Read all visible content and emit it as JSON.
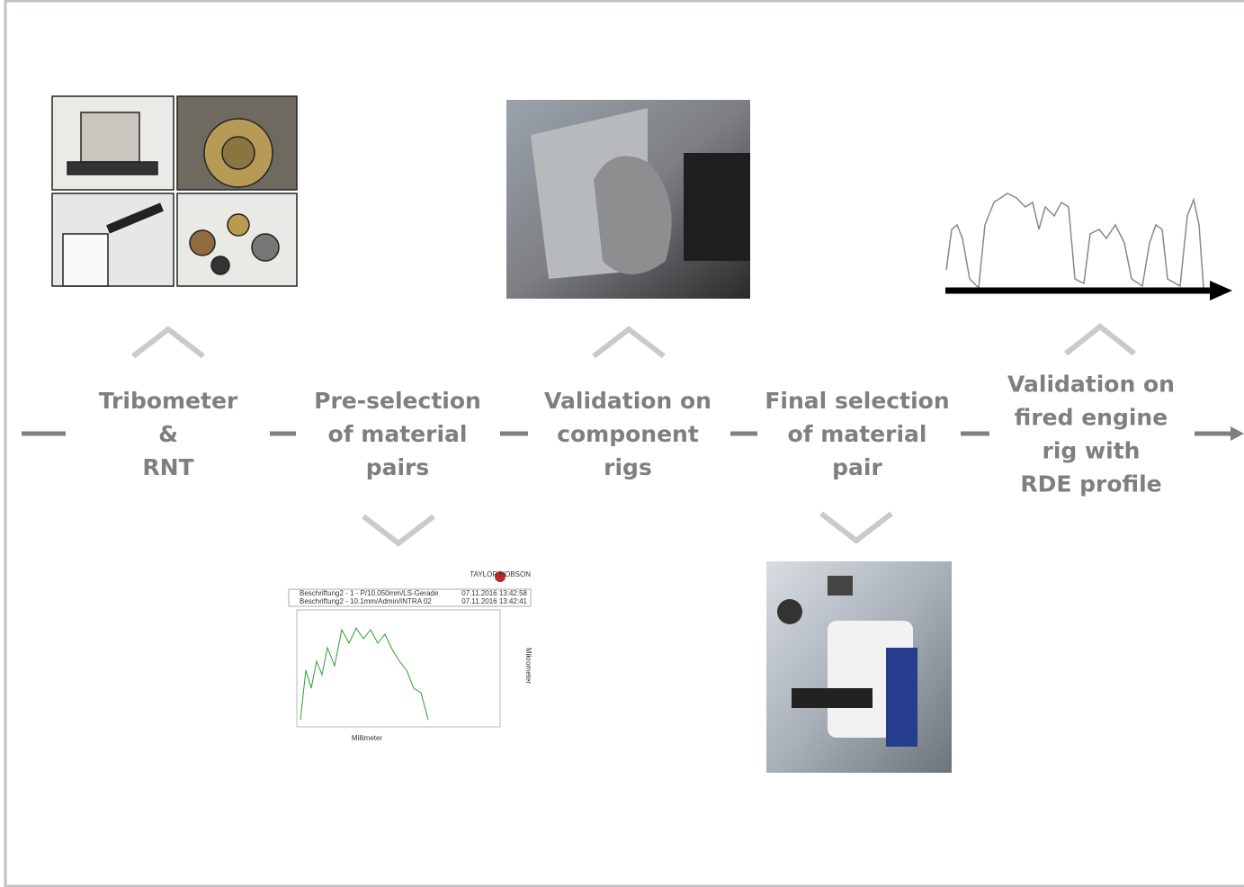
{
  "steps": [
    {
      "lines": [
        "Tribometer",
        "&",
        "RNT"
      ]
    },
    {
      "lines": [
        "Pre-selection",
        "of material",
        "pairs"
      ]
    },
    {
      "lines": [
        "Validation on",
        "component",
        "rigs"
      ]
    },
    {
      "lines": [
        "Final selection",
        "of material",
        "pair"
      ]
    },
    {
      "lines": [
        "Validation on",
        "fired engine",
        "rig with",
        "RDE profile"
      ]
    }
  ],
  "profile_chart": {
    "logo": "TAYLOR HOBSON",
    "header_lines": [
      "Beschriftung2 - 1 - P/10.050mm/LS-Gerade",
      "Beschriftung2 - 10.1mm/Admin/INTRA 02"
    ],
    "dates": [
      "07.11.2016 13:42:58",
      "07.11.2016 13:42:41"
    ],
    "x_label": "Millimeter",
    "y_label": "Mikrometer"
  }
}
